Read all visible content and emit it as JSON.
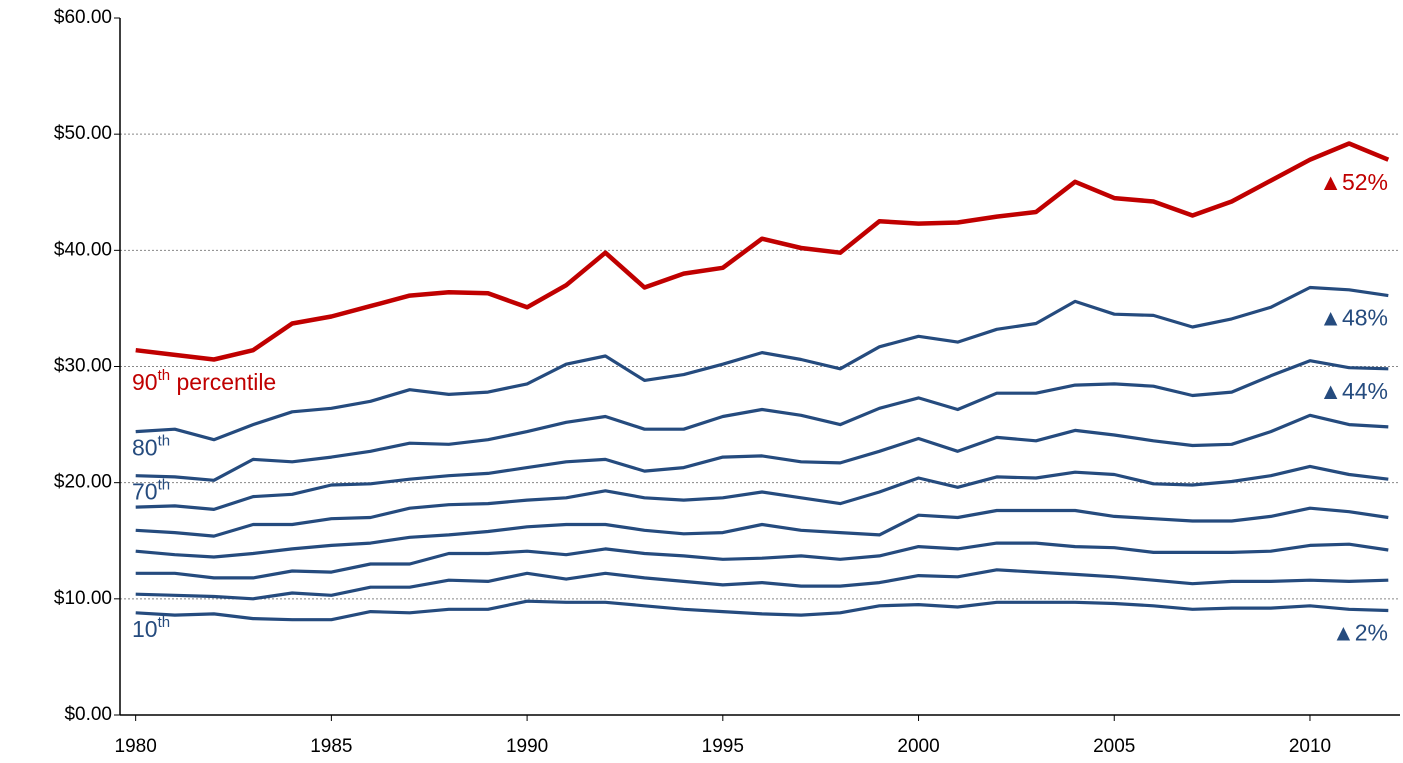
{
  "chart_data": {
    "type": "line",
    "x": [
      1980,
      1981,
      1982,
      1983,
      1984,
      1985,
      1986,
      1987,
      1988,
      1989,
      1990,
      1991,
      1992,
      1993,
      1994,
      1995,
      1996,
      1997,
      1998,
      1999,
      2000,
      2001,
      2002,
      2003,
      2004,
      2005,
      2006,
      2007,
      2008,
      2009,
      2010,
      2011,
      2012
    ],
    "xlim": [
      1979.6,
      2012.3
    ],
    "xticks": [
      1980,
      1985,
      1990,
      1995,
      2000,
      2005,
      2010
    ],
    "ylim": [
      0,
      60
    ],
    "yticks": [
      {
        "value": 0,
        "label": "$0.00"
      },
      {
        "value": 10,
        "label": "$10.00"
      },
      {
        "value": 20,
        "label": "$20.00"
      },
      {
        "value": 30,
        "label": "$30.00"
      },
      {
        "value": 40,
        "label": "$40.00"
      },
      {
        "value": 50,
        "label": "$50.00"
      },
      {
        "value": 60,
        "label": "$60.00"
      }
    ],
    "grid": true,
    "series": [
      {
        "name": "90th percentile",
        "color": "#c00000",
        "end_label": "▲52%",
        "values": [
          31.4,
          31.0,
          30.6,
          31.4,
          33.7,
          34.3,
          35.2,
          36.1,
          36.4,
          36.3,
          35.1,
          37.0,
          39.8,
          36.8,
          38.0,
          38.5,
          41.0,
          40.2,
          39.8,
          42.5,
          42.3,
          42.4,
          42.9,
          43.3,
          45.9,
          44.5,
          44.2,
          43.0,
          44.2,
          46.0,
          47.8,
          49.2,
          47.8
        ]
      },
      {
        "name": "80th",
        "color": "#254b7e",
        "end_label": "▲48%",
        "values": [
          24.4,
          24.6,
          23.7,
          25.0,
          26.1,
          26.4,
          27.0,
          28.0,
          27.6,
          27.8,
          28.5,
          30.2,
          30.9,
          28.8,
          29.3,
          30.2,
          31.2,
          30.6,
          29.8,
          31.7,
          32.6,
          32.1,
          33.2,
          33.7,
          35.6,
          34.5,
          34.4,
          33.4,
          34.1,
          35.1,
          36.8,
          36.6,
          36.1
        ]
      },
      {
        "name": "70th",
        "color": "#254b7e",
        "end_label": "▲44%",
        "values": [
          20.6,
          20.5,
          20.2,
          22.0,
          21.8,
          22.2,
          22.7,
          23.4,
          23.3,
          23.7,
          24.4,
          25.2,
          25.7,
          24.6,
          24.6,
          25.7,
          26.3,
          25.8,
          25.0,
          26.4,
          27.3,
          26.3,
          27.7,
          27.7,
          28.4,
          28.5,
          28.3,
          27.5,
          27.8,
          29.2,
          30.5,
          29.9,
          29.8
        ]
      },
      {
        "color": "#254b7e",
        "values": [
          17.9,
          18.0,
          17.7,
          18.8,
          19.0,
          19.8,
          19.9,
          20.3,
          20.6,
          20.8,
          21.3,
          21.8,
          22.0,
          21.0,
          21.3,
          22.2,
          22.3,
          21.8,
          21.7,
          22.7,
          23.8,
          22.7,
          23.9,
          23.6,
          24.5,
          24.1,
          23.6,
          23.2,
          23.3,
          24.4,
          25.8,
          25.0,
          24.8
        ]
      },
      {
        "color": "#254b7e",
        "values": [
          15.9,
          15.7,
          15.4,
          16.4,
          16.4,
          16.9,
          17.0,
          17.8,
          18.1,
          18.2,
          18.5,
          18.7,
          19.3,
          18.7,
          18.5,
          18.7,
          19.2,
          18.7,
          18.2,
          19.2,
          20.4,
          19.6,
          20.5,
          20.4,
          20.9,
          20.7,
          19.9,
          19.8,
          20.1,
          20.6,
          21.4,
          20.7,
          20.3
        ]
      },
      {
        "color": "#254b7e",
        "values": [
          14.1,
          13.8,
          13.6,
          13.9,
          14.3,
          14.6,
          14.8,
          15.3,
          15.5,
          15.8,
          16.2,
          16.4,
          16.4,
          15.9,
          15.6,
          15.7,
          16.4,
          15.9,
          15.7,
          15.5,
          17.2,
          17.0,
          17.6,
          17.6,
          17.6,
          17.1,
          16.9,
          16.7,
          16.7,
          17.1,
          17.8,
          17.5,
          17.0
        ]
      },
      {
        "color": "#254b7e",
        "values": [
          12.2,
          12.2,
          11.8,
          11.8,
          12.4,
          12.3,
          13.0,
          13.0,
          13.9,
          13.9,
          14.1,
          13.8,
          14.3,
          13.9,
          13.7,
          13.4,
          13.5,
          13.7,
          13.4,
          13.7,
          14.5,
          14.3,
          14.8,
          14.8,
          14.5,
          14.4,
          14.0,
          14.0,
          14.0,
          14.1,
          14.6,
          14.7,
          14.2
        ]
      },
      {
        "color": "#254b7e",
        "values": [
          10.4,
          10.3,
          10.2,
          10.0,
          10.5,
          10.3,
          11.0,
          11.0,
          11.6,
          11.5,
          12.2,
          11.7,
          12.2,
          11.8,
          11.5,
          11.2,
          11.4,
          11.1,
          11.1,
          11.4,
          12.0,
          11.9,
          12.5,
          12.3,
          12.1,
          11.9,
          11.6,
          11.3,
          11.5,
          11.5,
          11.6,
          11.5,
          11.6
        ]
      },
      {
        "name": "10th",
        "color": "#254b7e",
        "end_label": "▲2%",
        "values": [
          8.8,
          8.6,
          8.7,
          8.3,
          8.2,
          8.2,
          8.9,
          8.8,
          9.1,
          9.1,
          9.8,
          9.7,
          9.7,
          9.4,
          9.1,
          8.9,
          8.7,
          8.6,
          8.8,
          9.4,
          9.5,
          9.3,
          9.7,
          9.7,
          9.7,
          9.6,
          9.4,
          9.1,
          9.2,
          9.2,
          9.4,
          9.1,
          9.0
        ]
      }
    ]
  }
}
